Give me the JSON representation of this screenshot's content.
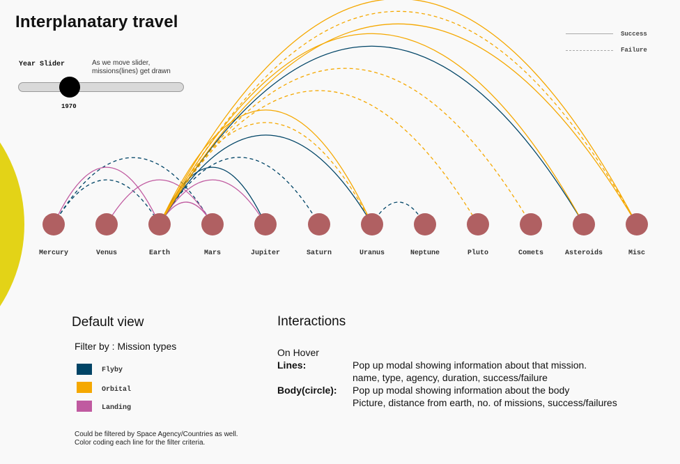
{
  "title": "Interplanatary travel",
  "slider": {
    "label": "Year Slider",
    "note_line1": "As we move slider,",
    "note_line2": "missions(lines) get drawn",
    "year": "1970"
  },
  "status_legend": {
    "success": "Success",
    "failure": "Failure"
  },
  "colors": {
    "flyby": "#004466",
    "orbital": "#f5a800",
    "landing": "#c05aa0",
    "body": "#b06062",
    "sun": "#e3d317",
    "legend_line": "#aaaaaa"
  },
  "bodies": [
    "Mercury",
    "Venus",
    "Earth",
    "Mars",
    "Jupiter",
    "Saturn",
    "Uranus",
    "Neptune",
    "Pluto",
    "Comets",
    "Asteroids",
    "Misc"
  ],
  "missions": [
    {
      "from": "Mercury",
      "to": "Mars",
      "type": "Flyby",
      "status": "Failure"
    },
    {
      "from": "Mercury",
      "to": "Earth",
      "type": "Flyby",
      "status": "Failure"
    },
    {
      "from": "Mercury",
      "to": "Earth",
      "type": "Landing",
      "status": "Success"
    },
    {
      "from": "Venus",
      "to": "Mars",
      "type": "Landing",
      "status": "Success"
    },
    {
      "from": "Earth",
      "to": "Mars",
      "type": "Landing",
      "status": "Success"
    },
    {
      "from": "Earth",
      "to": "Jupiter",
      "type": "Landing",
      "status": "Success"
    },
    {
      "from": "Earth",
      "to": "Jupiter",
      "type": "Flyby",
      "status": "Success"
    },
    {
      "from": "Earth",
      "to": "Saturn",
      "type": "Flyby",
      "status": "Failure"
    },
    {
      "from": "Earth",
      "to": "Uranus",
      "type": "Flyby",
      "status": "Success"
    },
    {
      "from": "Earth",
      "to": "Uranus",
      "type": "Orbital",
      "status": "Failure"
    },
    {
      "from": "Earth",
      "to": "Uranus",
      "type": "Orbital",
      "status": "Success"
    },
    {
      "from": "Uranus",
      "to": "Neptune",
      "type": "Flyby",
      "status": "Failure"
    },
    {
      "from": "Earth",
      "to": "Pluto",
      "type": "Orbital",
      "status": "Failure"
    },
    {
      "from": "Earth",
      "to": "Comets",
      "type": "Orbital",
      "status": "Failure"
    },
    {
      "from": "Earth",
      "to": "Asteroids",
      "type": "Flyby",
      "status": "Success"
    },
    {
      "from": "Earth",
      "to": "Asteroids",
      "type": "Orbital",
      "status": "Success"
    },
    {
      "from": "Earth",
      "to": "Misc",
      "type": "Orbital",
      "status": "Success"
    },
    {
      "from": "Earth",
      "to": "Misc",
      "type": "Orbital",
      "status": "Failure"
    },
    {
      "from": "Earth",
      "to": "Misc",
      "type": "Orbital",
      "status": "Success"
    }
  ],
  "default_view": {
    "title": "Default view",
    "filter_title": "Filter by : Mission types",
    "types": [
      {
        "label": "Flyby",
        "color": "#004466"
      },
      {
        "label": "Orbital",
        "color": "#f5a800"
      },
      {
        "label": "Landing",
        "color": "#c05aa0"
      }
    ],
    "note_line1": "Could be filtered by Space Agency/Countries as well.",
    "note_line2": "Color coding each line for the filter criteria."
  },
  "interactions": {
    "title": "Interactions",
    "on_hover": "On Hover",
    "lines_label": "Lines",
    "lines_text1": "Pop up modal showing information about that mission.",
    "lines_text2": "name, type, agency, duration, success/failure",
    "body_label": "Body(circle)",
    "body_text1": "Pop up modal showing information about the body",
    "body_text2": "Picture, distance from earth, no. of missions, success/failures"
  }
}
